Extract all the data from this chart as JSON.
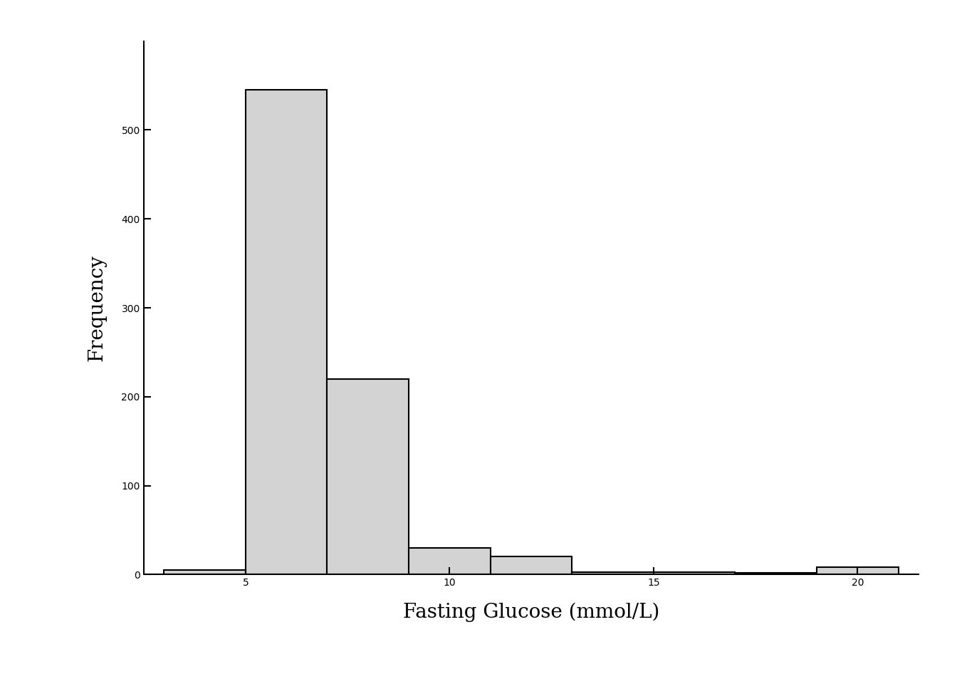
{
  "title": "",
  "xlabel": "Fasting Glucose (mmol/L)",
  "ylabel": "Frequency",
  "bar_color": "#d3d3d3",
  "bar_edge_color": "#000000",
  "bar_heights": [
    5,
    545,
    220,
    30,
    20,
    3,
    3,
    2,
    8
  ],
  "bin_edges": [
    3,
    5,
    7,
    9,
    11,
    13,
    15,
    17,
    19,
    21
  ],
  "xlim": [
    2.5,
    21.5
  ],
  "ylim": [
    0,
    600
  ],
  "xticks": [
    5,
    10,
    15,
    20
  ],
  "yticks": [
    0,
    100,
    200,
    300,
    400,
    500
  ],
  "background_color": "#ffffff",
  "label_fontsize": 20,
  "tick_fontsize": 18,
  "linewidth": 1.5
}
